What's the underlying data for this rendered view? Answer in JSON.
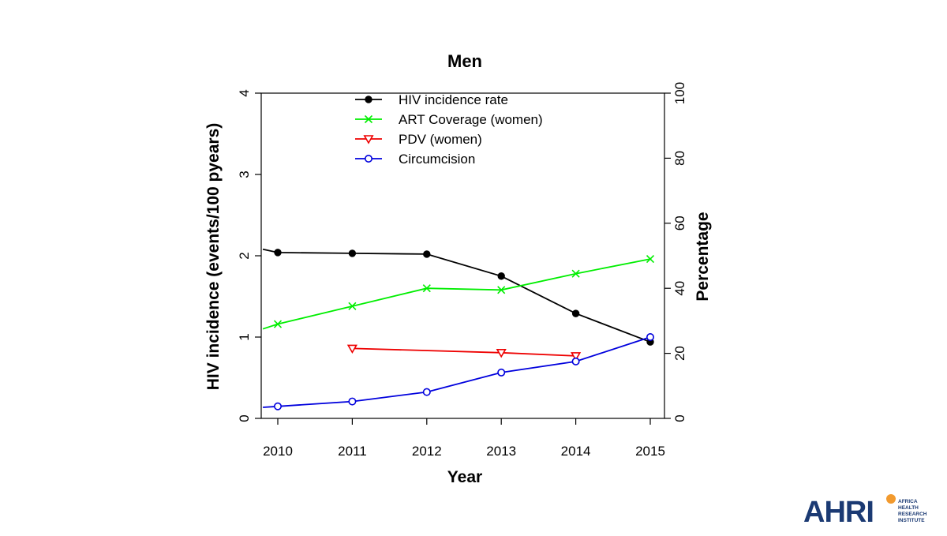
{
  "chart_data": {
    "type": "line",
    "title": "Men",
    "xlabel": "Year",
    "ylabel_left": "HIV incidence (events/100 pyears)",
    "ylabel_right": "Percentage",
    "xlim": [
      2010,
      2015
    ],
    "ylim_left": [
      0,
      4
    ],
    "ylim_right": [
      0,
      100
    ],
    "x_ticks": [
      2010,
      2011,
      2012,
      2013,
      2014,
      2015
    ],
    "y_left_ticks": [
      0,
      1,
      2,
      3,
      4
    ],
    "y_right_ticks": [
      0,
      20,
      40,
      60,
      80,
      100
    ],
    "grid": false,
    "legend_position": "top-center",
    "series": [
      {
        "name": "HIV incidence rate",
        "axis": "left",
        "color": "#000000",
        "marker": "filled-circle",
        "x": [
          2009.8,
          2010,
          2011,
          2012,
          2013,
          2014,
          2015
        ],
        "y": [
          2.08,
          2.04,
          2.03,
          2.02,
          1.75,
          1.29,
          0.94
        ],
        "marker_from_index": 1
      },
      {
        "name": "ART Coverage (women)",
        "axis": "right",
        "color": "#00ee00",
        "marker": "cross",
        "x": [
          2009.8,
          2010,
          2011,
          2012,
          2013,
          2014,
          2015
        ],
        "y": [
          27.5,
          29,
          34.5,
          40,
          39.5,
          44.5,
          49
        ],
        "marker_from_index": 1
      },
      {
        "name": "PDV (women)",
        "axis": "right",
        "color": "#ee0000",
        "marker": "down-triangle",
        "x": [
          2011,
          2013,
          2014
        ],
        "y": [
          21.5,
          20.2,
          19.2
        ],
        "marker_from_index": 0
      },
      {
        "name": "Circumcision",
        "axis": "right",
        "color": "#0000dd",
        "marker": "open-circle",
        "x": [
          2009.8,
          2010,
          2011,
          2012,
          2013,
          2014,
          2015
        ],
        "y": [
          3.4,
          3.7,
          5.2,
          8.1,
          14.1,
          17.5,
          25
        ],
        "marker_from_index": 1
      }
    ]
  },
  "logo": {
    "word": "AHRI",
    "subtitle_lines": [
      "AFRICA",
      "HEALTH",
      "RESEARCH",
      "INSTITUTE"
    ]
  }
}
